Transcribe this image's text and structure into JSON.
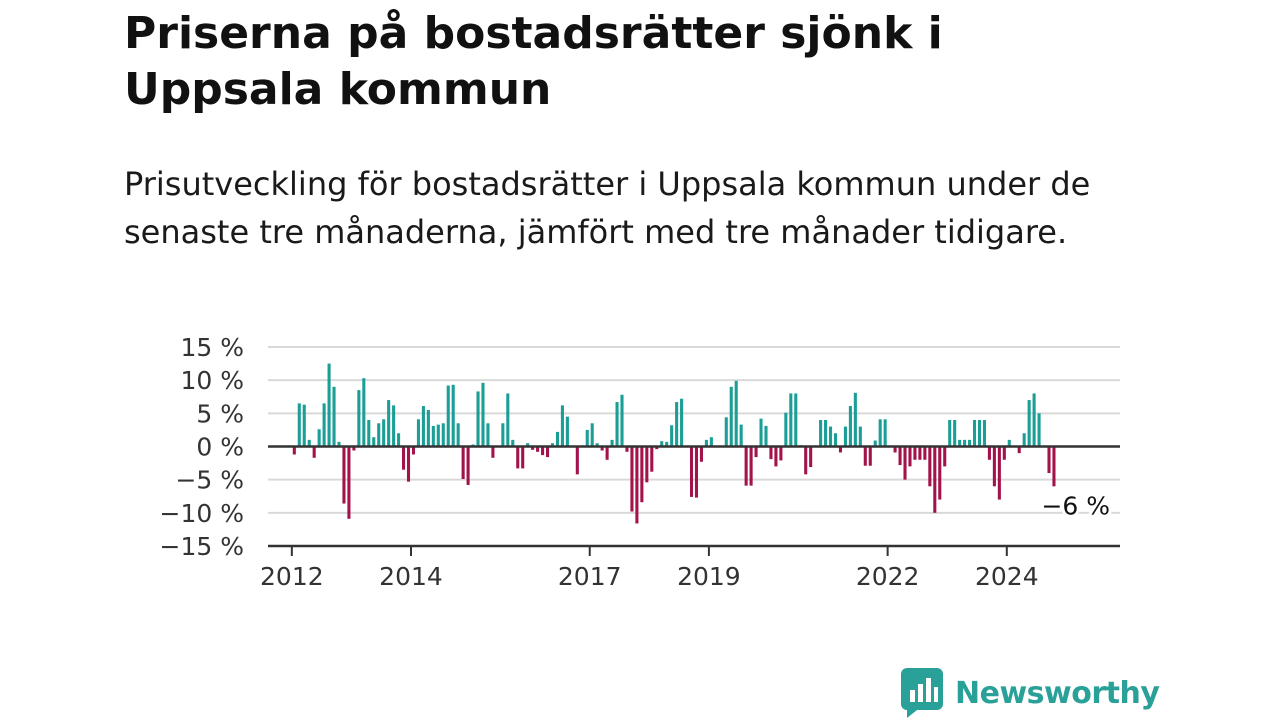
{
  "title": "Priserna på bostadsrätter sjönk i Uppsala kommun",
  "subtitle": "Prisutveckling för bostadsrätter i Uppsala kommun under de senaste tre månaderna, jämfört med tre månader tidigare.",
  "brand": {
    "name": "Newsworthy",
    "icon": "newsworthy-logo-icon",
    "color": "#2aa198"
  },
  "colors": {
    "positive": "#1a9e96",
    "negative": "#a3124a",
    "grid": "#d9d9d9",
    "axis": "#333333"
  },
  "chart_data": {
    "type": "bar",
    "title": "",
    "xlabel": "",
    "ylabel": "",
    "unit": "%",
    "ylim": [
      -15,
      15
    ],
    "yticks": [
      15,
      10,
      5,
      0,
      -5,
      -10,
      -15
    ],
    "ytick_labels": [
      "15 %",
      "10 %",
      "5 %",
      "0 %",
      "−5 %",
      "−10 %",
      "−15 %"
    ],
    "xlim": [
      2011.6,
      2025.9
    ],
    "xticks": [
      2012,
      2014,
      2017,
      2019,
      2022,
      2024
    ],
    "xtick_labels": [
      "2012",
      "2014",
      "2017",
      "2019",
      "2022",
      "2024"
    ],
    "grid": true,
    "start": "2012-01",
    "frequency": "monthly",
    "last_value_label": "−6 %",
    "values": [
      -1.2,
      6.5,
      6.3,
      1.0,
      -1.7,
      2.6,
      6.5,
      12.5,
      9.0,
      0.7,
      -8.6,
      -10.9,
      -0.6,
      8.5,
      10.3,
      4.0,
      1.4,
      3.5,
      4.1,
      7.0,
      6.2,
      2.0,
      -3.5,
      -5.3,
      -1.2,
      4.1,
      6.1,
      5.5,
      3.1,
      3.3,
      3.5,
      9.2,
      9.3,
      3.5,
      -4.9,
      -5.8,
      0.3,
      8.3,
      9.6,
      3.5,
      -1.7,
      0.0,
      3.5,
      8.0,
      1.0,
      -3.3,
      -3.3,
      0.5,
      -0.5,
      -0.8,
      -1.3,
      -1.6,
      0.5,
      2.2,
      6.2,
      4.5,
      0.0,
      -4.2,
      0.0,
      2.5,
      3.5,
      0.5,
      -0.6,
      -2.0,
      1.0,
      6.7,
      7.8,
      -0.8,
      -9.8,
      -11.6,
      -8.4,
      -5.4,
      -3.8,
      -0.4,
      0.8,
      0.7,
      3.2,
      6.7,
      7.2,
      0.0,
      -7.6,
      -7.7,
      -2.3,
      1.0,
      1.4,
      0.0,
      -0.1,
      4.4,
      9.0,
      9.9,
      3.3,
      -5.9,
      -5.9,
      -1.6,
      4.2,
      3.1,
      -1.9,
      -3.0,
      -2.1,
      5.1,
      8.0,
      8.0,
      0.2,
      -4.2,
      -3.1,
      0.0,
      4.0,
      4.0,
      3.0,
      2.0,
      -0.9,
      3.0,
      6.1,
      8.1,
      3.0,
      -2.9,
      -2.9,
      0.9,
      4.1,
      4.1,
      0.0,
      -0.9,
      -2.8,
      -5.0,
      -3.0,
      -2.0,
      -2.0,
      -2.0,
      -6.0,
      -10.0,
      -8.0,
      -3.0,
      4.0,
      4.0,
      1.0,
      1.0,
      1.0,
      4.0,
      4.0,
      4.0,
      -2.0,
      -6.0,
      -8.0,
      -2.0,
      1.0,
      0.0,
      -1.0,
      2.0,
      7.0,
      8.0,
      5.0,
      0.0,
      -4.0,
      -6.0
    ]
  }
}
